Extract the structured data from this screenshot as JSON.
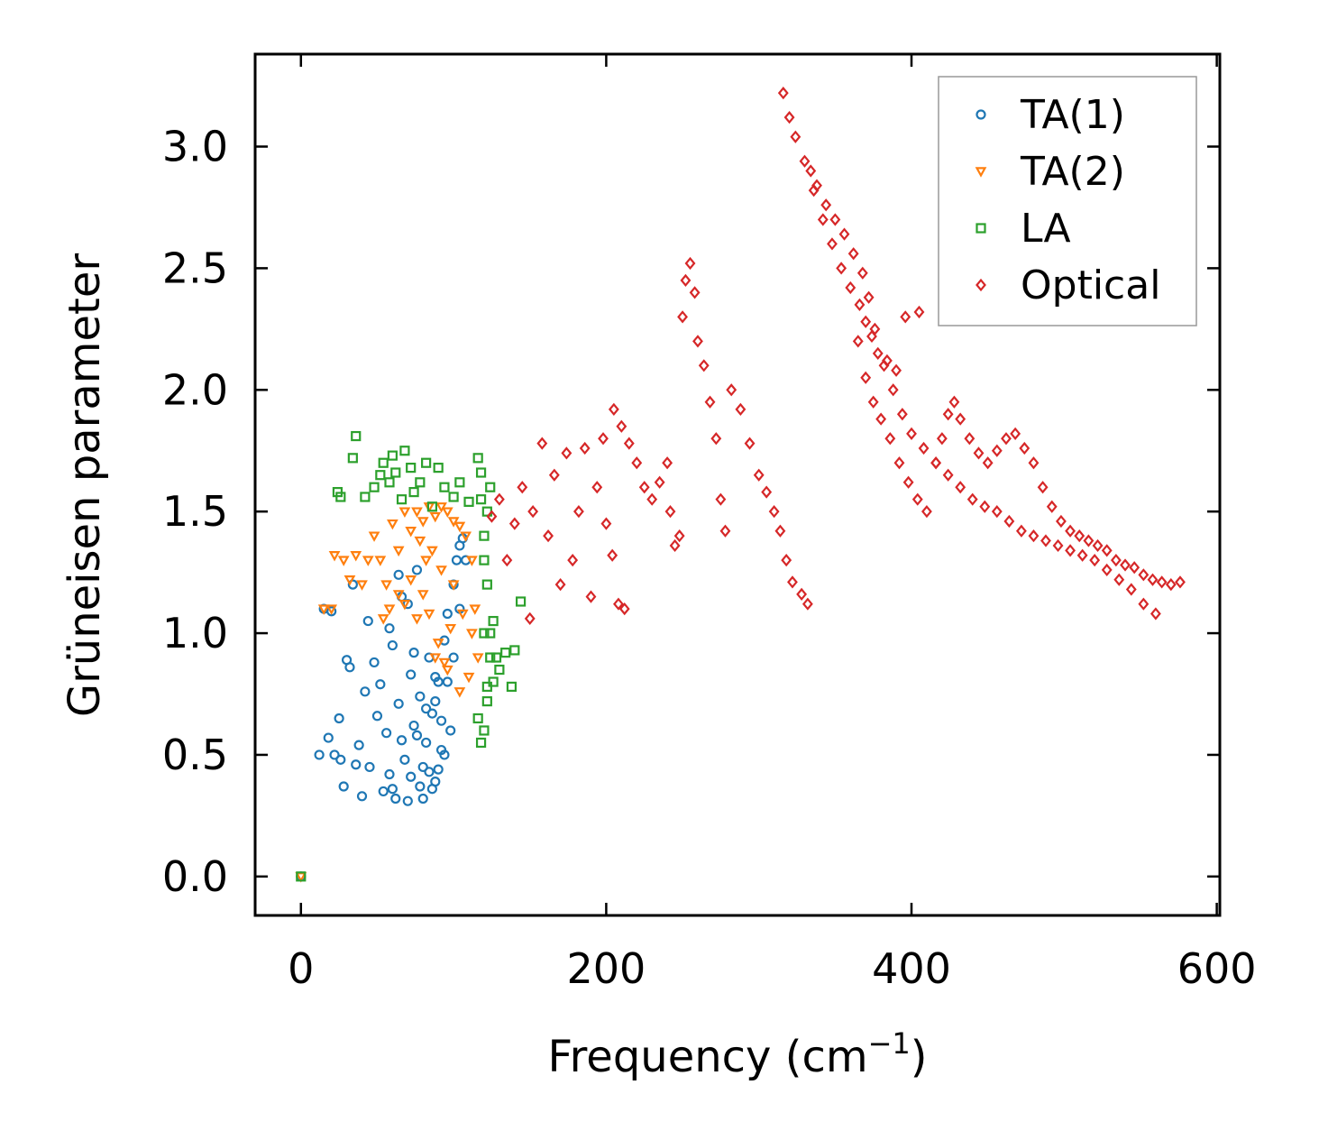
{
  "chart_data": {
    "type": "scatter",
    "title": "",
    "xlabel": "Frequency (cm",
    "xlabel_sup": "−1",
    "xlabel_close": ")",
    "ylabel": "Grüneisen parameter",
    "xlim": [
      -30,
      602
    ],
    "ylim": [
      -0.16,
      3.38
    ],
    "xticks": [
      0,
      200,
      400,
      600
    ],
    "xtick_labels": [
      "0",
      "200",
      "400",
      "600"
    ],
    "yticks": [
      0.0,
      0.5,
      1.0,
      1.5,
      2.0,
      2.5,
      3.0
    ],
    "ytick_labels": [
      "0.0",
      "0.5",
      "1.0",
      "1.5",
      "2.0",
      "2.5",
      "3.0"
    ],
    "grid": false,
    "legend_position": "top-right",
    "series": [
      {
        "name": "TA(1)",
        "marker": "circle",
        "color": "#1f77b4",
        "points": [
          [
            0,
            0
          ],
          [
            12,
            0.5
          ],
          [
            15,
            1.1
          ],
          [
            18,
            0.57
          ],
          [
            20,
            1.09
          ],
          [
            22,
            0.5
          ],
          [
            25,
            0.65
          ],
          [
            26,
            0.48
          ],
          [
            28,
            0.37
          ],
          [
            30,
            0.89
          ],
          [
            32,
            0.86
          ],
          [
            34,
            1.2
          ],
          [
            36,
            0.46
          ],
          [
            38,
            0.54
          ],
          [
            40,
            0.33
          ],
          [
            42,
            0.76
          ],
          [
            44,
            1.05
          ],
          [
            45,
            0.45
          ],
          [
            48,
            0.88
          ],
          [
            50,
            0.66
          ],
          [
            52,
            0.79
          ],
          [
            54,
            0.35
          ],
          [
            56,
            0.59
          ],
          [
            58,
            0.42
          ],
          [
            60,
            0.95
          ],
          [
            62,
            0.32
          ],
          [
            64,
            0.71
          ],
          [
            66,
            1.15
          ],
          [
            68,
            0.48
          ],
          [
            70,
            0.31
          ],
          [
            72,
            0.83
          ],
          [
            74,
            0.62
          ],
          [
            76,
            1.26
          ],
          [
            78,
            0.37
          ],
          [
            80,
            0.32
          ],
          [
            82,
            0.55
          ],
          [
            84,
            0.43
          ],
          [
            86,
            0.67
          ],
          [
            88,
            0.39
          ],
          [
            90,
            0.8
          ],
          [
            92,
            0.52
          ],
          [
            94,
            0.97
          ],
          [
            96,
            1.08
          ],
          [
            98,
            0.6
          ],
          [
            100,
            1.2
          ],
          [
            102,
            1.3
          ],
          [
            104,
            1.36
          ],
          [
            106,
            1.39
          ],
          [
            58,
            1.02
          ],
          [
            64,
            1.24
          ],
          [
            70,
            1.12
          ],
          [
            74,
            0.92
          ],
          [
            78,
            0.74
          ],
          [
            84,
            0.9
          ],
          [
            88,
            0.72
          ],
          [
            92,
            0.64
          ],
          [
            96,
            0.8
          ],
          [
            100,
            0.9
          ],
          [
            104,
            1.1
          ],
          [
            108,
            1.3
          ],
          [
            72,
            0.41
          ],
          [
            80,
            0.45
          ],
          [
            86,
            0.36
          ],
          [
            90,
            0.44
          ],
          [
            94,
            0.5
          ],
          [
            60,
            0.36
          ],
          [
            66,
            0.56
          ],
          [
            76,
            0.58
          ],
          [
            82,
            0.69
          ],
          [
            88,
            0.82
          ]
        ]
      },
      {
        "name": "TA(2)",
        "marker": "triangle",
        "color": "#ff7f0e",
        "points": [
          [
            0,
            0
          ],
          [
            15,
            1.1
          ],
          [
            20,
            1.1
          ],
          [
            22,
            1.32
          ],
          [
            28,
            1.3
          ],
          [
            32,
            1.22
          ],
          [
            36,
            1.32
          ],
          [
            40,
            1.2
          ],
          [
            44,
            1.3
          ],
          [
            48,
            1.4
          ],
          [
            52,
            1.3
          ],
          [
            56,
            1.2
          ],
          [
            60,
            1.45
          ],
          [
            64,
            1.34
          ],
          [
            68,
            1.5
          ],
          [
            72,
            1.42
          ],
          [
            76,
            1.5
          ],
          [
            80,
            1.46
          ],
          [
            84,
            1.52
          ],
          [
            88,
            1.48
          ],
          [
            92,
            1.52
          ],
          [
            96,
            1.5
          ],
          [
            100,
            1.46
          ],
          [
            104,
            1.44
          ],
          [
            108,
            1.4
          ],
          [
            112,
            1.3
          ],
          [
            114,
            1.1
          ],
          [
            116,
            0.9
          ],
          [
            110,
            0.82
          ],
          [
            104,
            0.76
          ],
          [
            96,
            0.85
          ],
          [
            90,
            0.96
          ],
          [
            84,
            1.08
          ],
          [
            80,
            1.16
          ],
          [
            76,
            1.06
          ],
          [
            72,
            1.22
          ],
          [
            68,
            1.12
          ],
          [
            64,
            1.16
          ],
          [
            58,
            1.1
          ],
          [
            54,
            1.06
          ],
          [
            100,
            1.2
          ],
          [
            92,
            1.26
          ],
          [
            86,
            1.34
          ],
          [
            82,
            1.3
          ],
          [
            78,
            1.38
          ],
          [
            106,
            1.08
          ],
          [
            112,
            1.0
          ],
          [
            94,
            0.88
          ],
          [
            88,
            0.9
          ],
          [
            98,
            1.02
          ]
        ]
      },
      {
        "name": "LA",
        "marker": "square",
        "color": "#2ca02c",
        "points": [
          [
            0,
            0
          ],
          [
            24,
            1.58
          ],
          [
            26,
            1.56
          ],
          [
            36,
            1.81
          ],
          [
            34,
            1.72
          ],
          [
            42,
            1.56
          ],
          [
            48,
            1.6
          ],
          [
            52,
            1.65
          ],
          [
            54,
            1.7
          ],
          [
            58,
            1.62
          ],
          [
            60,
            1.73
          ],
          [
            62,
            1.66
          ],
          [
            66,
            1.55
          ],
          [
            68,
            1.75
          ],
          [
            72,
            1.68
          ],
          [
            74,
            1.58
          ],
          [
            78,
            1.62
          ],
          [
            82,
            1.7
          ],
          [
            86,
            1.52
          ],
          [
            90,
            1.68
          ],
          [
            94,
            1.6
          ],
          [
            100,
            1.56
          ],
          [
            104,
            1.62
          ],
          [
            110,
            1.54
          ],
          [
            116,
            1.72
          ],
          [
            118,
            1.55
          ],
          [
            120,
            1.4
          ],
          [
            122,
            1.2
          ],
          [
            124,
            1.0
          ],
          [
            126,
            0.8
          ],
          [
            128,
            0.9
          ],
          [
            130,
            0.85
          ],
          [
            134,
            0.92
          ],
          [
            138,
            0.78
          ],
          [
            140,
            0.93
          ],
          [
            144,
            1.13
          ],
          [
            116,
            0.65
          ],
          [
            118,
            0.55
          ],
          [
            120,
            0.6
          ],
          [
            122,
            0.72
          ],
          [
            124,
            0.9
          ],
          [
            126,
            1.05
          ],
          [
            120,
            1.3
          ],
          [
            122,
            1.5
          ],
          [
            124,
            1.6
          ],
          [
            118,
            1.66
          ],
          [
            120,
            1.0
          ],
          [
            122,
            0.78
          ]
        ]
      },
      {
        "name": "Optical",
        "marker": "diamond",
        "color": "#d62728",
        "points": [
          [
            125,
            1.48
          ],
          [
            130,
            1.55
          ],
          [
            135,
            1.3
          ],
          [
            140,
            1.45
          ],
          [
            145,
            1.6
          ],
          [
            150,
            1.06
          ],
          [
            152,
            1.5
          ],
          [
            158,
            1.78
          ],
          [
            162,
            1.4
          ],
          [
            166,
            1.65
          ],
          [
            170,
            1.2
          ],
          [
            174,
            1.74
          ],
          [
            178,
            1.3
          ],
          [
            182,
            1.5
          ],
          [
            186,
            1.76
          ],
          [
            190,
            1.15
          ],
          [
            194,
            1.6
          ],
          [
            198,
            1.8
          ],
          [
            200,
            1.45
          ],
          [
            204,
            1.32
          ],
          [
            208,
            1.12
          ],
          [
            212,
            1.1
          ],
          [
            205,
            1.92
          ],
          [
            210,
            1.85
          ],
          [
            215,
            1.78
          ],
          [
            220,
            1.7
          ],
          [
            225,
            1.6
          ],
          [
            230,
            1.55
          ],
          [
            235,
            1.62
          ],
          [
            240,
            1.7
          ],
          [
            242,
            1.5
          ],
          [
            245,
            1.36
          ],
          [
            248,
            1.4
          ],
          [
            250,
            2.3
          ],
          [
            252,
            2.45
          ],
          [
            255,
            2.52
          ],
          [
            258,
            2.4
          ],
          [
            260,
            2.2
          ],
          [
            264,
            2.1
          ],
          [
            268,
            1.95
          ],
          [
            272,
            1.8
          ],
          [
            275,
            1.55
          ],
          [
            278,
            1.42
          ],
          [
            282,
            2.0
          ],
          [
            288,
            1.92
          ],
          [
            294,
            1.78
          ],
          [
            300,
            1.65
          ],
          [
            305,
            1.58
          ],
          [
            310,
            1.5
          ],
          [
            314,
            1.42
          ],
          [
            318,
            1.3
          ],
          [
            322,
            1.21
          ],
          [
            328,
            1.16
          ],
          [
            332,
            1.12
          ],
          [
            316,
            3.22
          ],
          [
            320,
            3.12
          ],
          [
            324,
            3.04
          ],
          [
            330,
            2.94
          ],
          [
            336,
            2.82
          ],
          [
            342,
            2.7
          ],
          [
            348,
            2.6
          ],
          [
            354,
            2.5
          ],
          [
            360,
            2.42
          ],
          [
            366,
            2.35
          ],
          [
            370,
            2.28
          ],
          [
            374,
            2.22
          ],
          [
            378,
            2.15
          ],
          [
            384,
            2.12
          ],
          [
            390,
            2.08
          ],
          [
            396,
            2.3
          ],
          [
            405,
            2.32
          ],
          [
            365,
            2.2
          ],
          [
            370,
            2.05
          ],
          [
            375,
            1.95
          ],
          [
            380,
            1.88
          ],
          [
            386,
            1.8
          ],
          [
            392,
            1.7
          ],
          [
            398,
            1.62
          ],
          [
            404,
            1.55
          ],
          [
            410,
            1.5
          ],
          [
            416,
            1.7
          ],
          [
            420,
            1.8
          ],
          [
            424,
            1.9
          ],
          [
            428,
            1.95
          ],
          [
            432,
            1.88
          ],
          [
            438,
            1.8
          ],
          [
            444,
            1.74
          ],
          [
            450,
            1.7
          ],
          [
            456,
            1.75
          ],
          [
            462,
            1.8
          ],
          [
            468,
            1.82
          ],
          [
            474,
            1.76
          ],
          [
            480,
            1.7
          ],
          [
            486,
            1.6
          ],
          [
            492,
            1.52
          ],
          [
            498,
            1.46
          ],
          [
            504,
            1.42
          ],
          [
            510,
            1.4
          ],
          [
            516,
            1.38
          ],
          [
            522,
            1.36
          ],
          [
            528,
            1.34
          ],
          [
            534,
            1.3
          ],
          [
            540,
            1.28
          ],
          [
            546,
            1.27
          ],
          [
            552,
            1.24
          ],
          [
            558,
            1.22
          ],
          [
            564,
            1.21
          ],
          [
            570,
            1.2
          ],
          [
            576,
            1.21
          ],
          [
            560,
            1.08
          ],
          [
            552,
            1.12
          ],
          [
            544,
            1.18
          ],
          [
            536,
            1.22
          ],
          [
            528,
            1.26
          ],
          [
            520,
            1.3
          ],
          [
            512,
            1.32
          ],
          [
            504,
            1.34
          ],
          [
            496,
            1.36
          ],
          [
            488,
            1.38
          ],
          [
            480,
            1.4
          ],
          [
            472,
            1.42
          ],
          [
            464,
            1.46
          ],
          [
            456,
            1.5
          ],
          [
            448,
            1.52
          ],
          [
            440,
            1.55
          ],
          [
            432,
            1.6
          ],
          [
            424,
            1.65
          ],
          [
            416,
            1.7
          ],
          [
            408,
            1.76
          ],
          [
            400,
            1.82
          ],
          [
            394,
            1.9
          ],
          [
            388,
            2.0
          ],
          [
            382,
            2.1
          ],
          [
            376,
            2.25
          ],
          [
            372,
            2.38
          ],
          [
            368,
            2.48
          ],
          [
            362,
            2.56
          ],
          [
            356,
            2.64
          ],
          [
            350,
            2.7
          ],
          [
            344,
            2.76
          ],
          [
            338,
            2.84
          ],
          [
            334,
            2.9
          ]
        ]
      }
    ]
  }
}
